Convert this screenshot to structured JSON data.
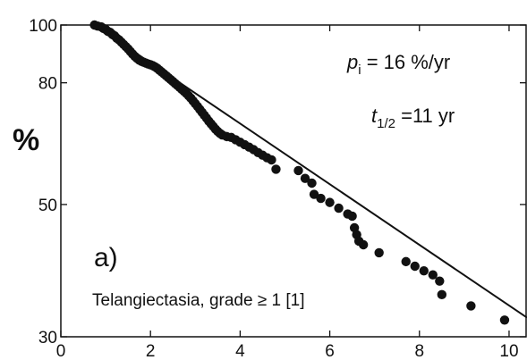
{
  "chart_data": {
    "type": "scatter",
    "ylabel": "%",
    "xlabel": "",
    "title": "",
    "x_ticks": [
      0,
      2,
      4,
      6,
      8,
      10
    ],
    "y_ticks": [
      100,
      80,
      50,
      30
    ],
    "xlim": [
      0,
      10.4
    ],
    "ylim": [
      30,
      100
    ],
    "y_scale": "log",
    "grid": false,
    "panel_label": "a)",
    "condition_label": "Telangiectasia, grade ≥ 1 [1]",
    "annotations": {
      "p_symbol": "p",
      "p_subscript": "i",
      "p_value": " = 16 %/yr",
      "t_symbol": "t",
      "t_subscript": "1/2",
      "t_value": " =11 yr"
    },
    "fit_line": {
      "x": [
        0.75,
        10.4
      ],
      "y": [
        100,
        32.3
      ]
    },
    "points": [
      {
        "x": 0.75,
        "y": 100
      },
      {
        "x": 0.82,
        "y": 99.6
      },
      {
        "x": 0.9,
        "y": 99.3
      },
      {
        "x": 0.95,
        "y": 98.7
      },
      {
        "x": 1.0,
        "y": 98.3
      },
      {
        "x": 1.05,
        "y": 97.6
      },
      {
        "x": 1.1,
        "y": 97.2
      },
      {
        "x": 1.15,
        "y": 96.4
      },
      {
        "x": 1.2,
        "y": 95.9
      },
      {
        "x": 1.25,
        "y": 95.0
      },
      {
        "x": 1.3,
        "y": 94.4
      },
      {
        "x": 1.35,
        "y": 93.6
      },
      {
        "x": 1.4,
        "y": 92.8
      },
      {
        "x": 1.45,
        "y": 92.0
      },
      {
        "x": 1.5,
        "y": 91.2
      },
      {
        "x": 1.55,
        "y": 90.3
      },
      {
        "x": 1.6,
        "y": 89.4
      },
      {
        "x": 1.65,
        "y": 88.6
      },
      {
        "x": 1.7,
        "y": 87.9
      },
      {
        "x": 1.75,
        "y": 87.3
      },
      {
        "x": 1.8,
        "y": 86.9
      },
      {
        "x": 1.85,
        "y": 86.6
      },
      {
        "x": 1.9,
        "y": 86.3
      },
      {
        "x": 1.95,
        "y": 86.0
      },
      {
        "x": 2.0,
        "y": 85.8
      },
      {
        "x": 2.05,
        "y": 85.5
      },
      {
        "x": 2.1,
        "y": 85.1
      },
      {
        "x": 2.15,
        "y": 84.6
      },
      {
        "x": 2.2,
        "y": 84.0
      },
      {
        "x": 2.25,
        "y": 83.4
      },
      {
        "x": 2.3,
        "y": 82.8
      },
      {
        "x": 2.35,
        "y": 82.2
      },
      {
        "x": 2.4,
        "y": 81.6
      },
      {
        "x": 2.45,
        "y": 81.0
      },
      {
        "x": 2.5,
        "y": 80.4
      },
      {
        "x": 2.55,
        "y": 79.8
      },
      {
        "x": 2.6,
        "y": 79.2
      },
      {
        "x": 2.65,
        "y": 78.6
      },
      {
        "x": 2.7,
        "y": 78.0
      },
      {
        "x": 2.75,
        "y": 77.4
      },
      {
        "x": 2.8,
        "y": 76.8
      },
      {
        "x": 2.85,
        "y": 76.1
      },
      {
        "x": 2.9,
        "y": 75.4
      },
      {
        "x": 2.95,
        "y": 74.6
      },
      {
        "x": 3.0,
        "y": 73.8
      },
      {
        "x": 3.05,
        "y": 73.0
      },
      {
        "x": 3.1,
        "y": 72.2
      },
      {
        "x": 3.15,
        "y": 71.4
      },
      {
        "x": 3.2,
        "y": 70.6
      },
      {
        "x": 3.25,
        "y": 69.8
      },
      {
        "x": 3.3,
        "y": 69.0
      },
      {
        "x": 3.35,
        "y": 68.3
      },
      {
        "x": 3.4,
        "y": 67.6
      },
      {
        "x": 3.45,
        "y": 66.9
      },
      {
        "x": 3.5,
        "y": 66.3
      },
      {
        "x": 3.55,
        "y": 65.8
      },
      {
        "x": 3.6,
        "y": 65.4
      },
      {
        "x": 3.7,
        "y": 65.0
      },
      {
        "x": 3.8,
        "y": 64.8
      },
      {
        "x": 3.9,
        "y": 64.2
      },
      {
        "x": 4.0,
        "y": 63.6
      },
      {
        "x": 4.1,
        "y": 63.0
      },
      {
        "x": 4.2,
        "y": 62.4
      },
      {
        "x": 4.3,
        "y": 61.8
      },
      {
        "x": 4.4,
        "y": 61.1
      },
      {
        "x": 4.5,
        "y": 60.5
      },
      {
        "x": 4.6,
        "y": 59.9
      },
      {
        "x": 4.7,
        "y": 59.4
      },
      {
        "x": 4.8,
        "y": 57.3
      },
      {
        "x": 5.3,
        "y": 57.0
      },
      {
        "x": 5.45,
        "y": 55.3
      },
      {
        "x": 5.6,
        "y": 54.3
      },
      {
        "x": 5.65,
        "y": 52.0
      },
      {
        "x": 5.8,
        "y": 51.2
      },
      {
        "x": 6.0,
        "y": 50.4
      },
      {
        "x": 6.2,
        "y": 49.3
      },
      {
        "x": 6.4,
        "y": 48.2
      },
      {
        "x": 6.5,
        "y": 47.8
      },
      {
        "x": 6.55,
        "y": 45.7
      },
      {
        "x": 6.6,
        "y": 44.5
      },
      {
        "x": 6.65,
        "y": 43.4
      },
      {
        "x": 6.75,
        "y": 42.8
      },
      {
        "x": 7.1,
        "y": 41.5
      },
      {
        "x": 7.7,
        "y": 40.1
      },
      {
        "x": 7.9,
        "y": 39.4
      },
      {
        "x": 8.1,
        "y": 38.7
      },
      {
        "x": 8.3,
        "y": 38.1
      },
      {
        "x": 8.45,
        "y": 37.2
      },
      {
        "x": 8.5,
        "y": 35.3
      },
      {
        "x": 9.15,
        "y": 33.8
      },
      {
        "x": 9.9,
        "y": 32.0
      }
    ]
  }
}
